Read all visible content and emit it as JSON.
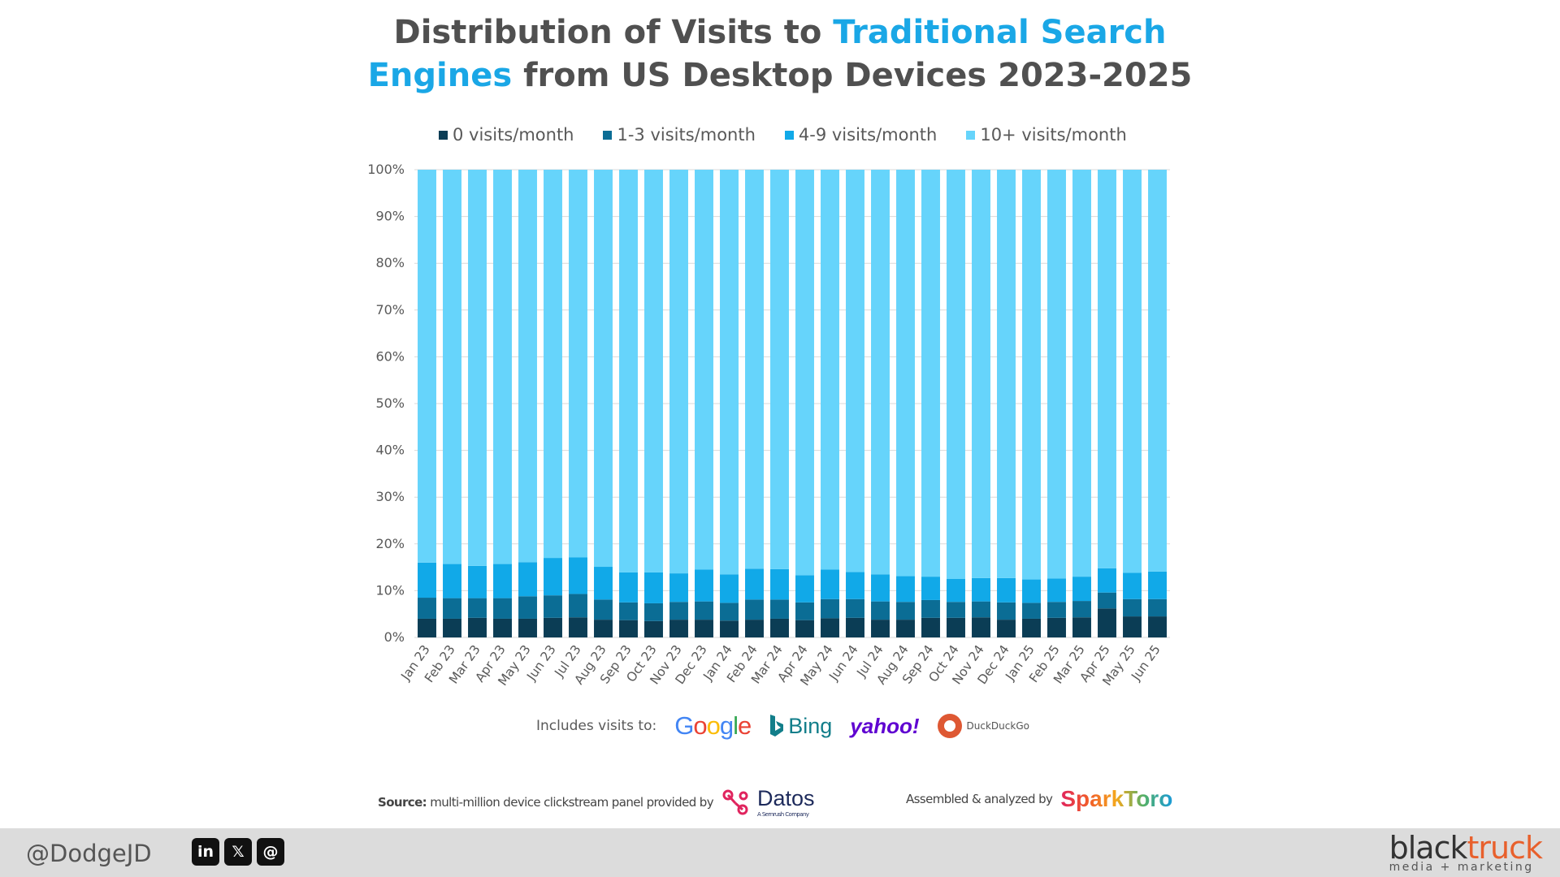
{
  "title": {
    "part1": "Distribution of Visits to ",
    "highlight1": "Traditional Search",
    "highlight2": "Engines",
    "part2": " from US Desktop Devices 2023-2025"
  },
  "colors": {
    "title_highlight": "#1aa7e6",
    "series": [
      "#0b3d55",
      "#0b6d95",
      "#11a9e8",
      "#66d4fb"
    ]
  },
  "chart_data": {
    "type": "bar",
    "stacked": true,
    "title": "Distribution of Visits to Traditional Search Engines from US Desktop Devices 2023-2025",
    "xlabel": "",
    "ylabel": "",
    "ylim": [
      0,
      100
    ],
    "yticks": [
      "0%",
      "10%",
      "20%",
      "30%",
      "40%",
      "50%",
      "60%",
      "70%",
      "80%",
      "90%",
      "100%"
    ],
    "grid": true,
    "legend_position": "top",
    "categories": [
      "Jan 23",
      "Feb 23",
      "Mar 23",
      "Apr 23",
      "May 23",
      "Jun 23",
      "Jul 23",
      "Aug 23",
      "Sep 23",
      "Oct 23",
      "Nov 23",
      "Dec 23",
      "Jan 24",
      "Feb 24",
      "Mar 24",
      "Apr 24",
      "May 24",
      "Jun 24",
      "Jul 24",
      "Aug 24",
      "Sep 24",
      "Oct 24",
      "Nov 24",
      "Dec 24",
      "Jan 25",
      "Feb 25",
      "Mar 25",
      "Apr 25",
      "May 25",
      "Jun 25"
    ],
    "series": [
      {
        "name": "0 visits/month",
        "values": [
          4.0,
          4.0,
          4.2,
          4.0,
          4.0,
          4.2,
          4.3,
          3.8,
          3.7,
          3.5,
          3.8,
          3.8,
          3.6,
          3.8,
          4.0,
          3.7,
          4.1,
          4.2,
          3.8,
          3.8,
          4.2,
          4.2,
          4.3,
          3.8,
          4.0,
          4.2,
          4.3,
          6.2,
          4.5,
          4.5
        ]
      },
      {
        "name": "1-3 visits/month",
        "values": [
          4.5,
          4.4,
          4.2,
          4.4,
          4.8,
          4.8,
          5.0,
          4.3,
          3.8,
          3.8,
          3.8,
          3.9,
          3.8,
          4.3,
          4.1,
          3.8,
          4.1,
          4.0,
          3.9,
          3.8,
          3.8,
          3.4,
          3.4,
          3.7,
          3.4,
          3.4,
          3.5,
          3.4,
          3.7,
          3.7
        ]
      },
      {
        "name": "4-9 visits/month",
        "values": [
          7.5,
          7.3,
          6.9,
          7.3,
          7.3,
          8.0,
          7.8,
          7.0,
          6.4,
          6.6,
          6.1,
          6.8,
          6.1,
          6.6,
          6.5,
          5.8,
          6.3,
          5.8,
          5.8,
          5.5,
          5.0,
          4.9,
          5.0,
          5.2,
          5.0,
          5.0,
          5.2,
          5.2,
          5.6,
          5.9
        ]
      },
      {
        "name": "10+ visits/month",
        "values": [
          84.0,
          84.3,
          84.7,
          84.3,
          83.9,
          83.0,
          82.9,
          84.9,
          86.1,
          86.1,
          86.3,
          85.5,
          86.5,
          85.3,
          85.4,
          86.7,
          85.5,
          86.0,
          86.5,
          86.9,
          87.0,
          87.5,
          87.3,
          87.3,
          87.6,
          87.4,
          87.0,
          85.2,
          86.2,
          85.9
        ]
      }
    ]
  },
  "includes": {
    "label": "Includes visits to:",
    "engines": [
      "Google",
      "Bing",
      "yahoo!",
      "DuckDuckGo"
    ]
  },
  "source": {
    "bold": "Source:",
    "text": " multi-million device clickstream panel provided by",
    "brand": "Datos",
    "brand_sub": "A Semrush Company"
  },
  "assembled": {
    "text": "Assembled & analyzed by",
    "brand": "SparkToro"
  },
  "footer": {
    "handle": "@DodgeJD",
    "social_icons": [
      "linkedin-icon",
      "x-icon",
      "threads-icon"
    ],
    "brand_black": "black",
    "brand_orange": "truck",
    "brand_sub": "media + marketing"
  }
}
